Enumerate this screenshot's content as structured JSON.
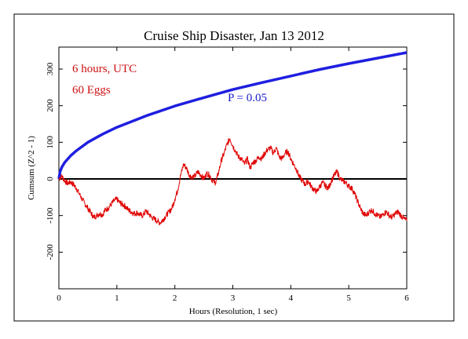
{
  "chart_data": {
    "type": "line",
    "title": "Cruise Ship Disaster, Jan 13 2012",
    "xlabel": "Hours (Resolution, 1 sec)",
    "ylabel": "Cumsum (Z^2 - 1)",
    "xlim": [
      0,
      6
    ],
    "ylim": [
      -300,
      360
    ],
    "x_ticks": [
      "0",
      "1",
      "2",
      "3",
      "4",
      "5",
      "6"
    ],
    "y_ticks": [
      "-200",
      "-100",
      "0",
      "100",
      "200",
      "300"
    ],
    "annotations": {
      "duration": "6 hours, UTC",
      "eggs": "60 Eggs",
      "p_label": "P = 0.05"
    },
    "colors": {
      "cumsum": "#e00000",
      "envelope": "#1f1fe0",
      "zero": "#000000",
      "annotation": "#cc1111",
      "p_label": "#1a1acc"
    },
    "series": [
      {
        "role": "envelope",
        "x": [
          0,
          0.02,
          0.05,
          0.1,
          0.2,
          0.3,
          0.5,
          0.75,
          1.0,
          1.5,
          2.0,
          2.5,
          3.0,
          3.5,
          4.0,
          4.5,
          5.0,
          5.5,
          6.0
        ],
        "values": [
          0,
          20,
          32,
          45,
          63,
          77,
          100,
          122,
          141,
          172,
          199,
          222,
          244,
          263,
          281,
          299,
          315,
          330,
          345
        ]
      },
      {
        "role": "cumsum",
        "x": [
          0,
          0.05,
          0.1,
          0.15,
          0.2,
          0.25,
          0.3,
          0.35,
          0.4,
          0.45,
          0.5,
          0.55,
          0.6,
          0.65,
          0.7,
          0.75,
          0.8,
          0.85,
          0.9,
          0.95,
          1.0,
          1.05,
          1.1,
          1.15,
          1.2,
          1.25,
          1.3,
          1.35,
          1.4,
          1.45,
          1.5,
          1.55,
          1.6,
          1.65,
          1.7,
          1.75,
          1.8,
          1.85,
          1.9,
          1.95,
          2.0,
          2.05,
          2.1,
          2.15,
          2.2,
          2.25,
          2.3,
          2.35,
          2.4,
          2.45,
          2.5,
          2.55,
          2.6,
          2.65,
          2.7,
          2.75,
          2.8,
          2.85,
          2.9,
          2.95,
          3.0,
          3.05,
          3.1,
          3.15,
          3.2,
          3.25,
          3.3,
          3.35,
          3.4,
          3.45,
          3.5,
          3.55,
          3.6,
          3.65,
          3.7,
          3.75,
          3.8,
          3.85,
          3.9,
          3.95,
          4.0,
          4.05,
          4.1,
          4.15,
          4.2,
          4.25,
          4.3,
          4.35,
          4.4,
          4.45,
          4.5,
          4.55,
          4.6,
          4.65,
          4.7,
          4.75,
          4.8,
          4.85,
          4.9,
          4.95,
          5.0,
          5.05,
          5.1,
          5.15,
          5.2,
          5.25,
          5.3,
          5.35,
          5.4,
          5.45,
          5.5,
          5.55,
          5.6,
          5.65,
          5.7,
          5.75,
          5.8,
          5.85,
          5.9,
          5.95,
          6.0
        ],
        "values": [
          0,
          8,
          -5,
          -12,
          -8,
          -15,
          -25,
          -40,
          -55,
          -68,
          -80,
          -92,
          -105,
          -100,
          -95,
          -98,
          -85,
          -80,
          -70,
          -60,
          -55,
          -65,
          -70,
          -75,
          -85,
          -90,
          -95,
          -92,
          -98,
          -100,
          -88,
          -95,
          -105,
          -110,
          -115,
          -120,
          -110,
          -100,
          -90,
          -80,
          -55,
          -30,
          10,
          40,
          30,
          10,
          5,
          8,
          20,
          10,
          0,
          15,
          10,
          -5,
          -10,
          15,
          50,
          70,
          95,
          110,
          90,
          75,
          60,
          55,
          40,
          55,
          30,
          45,
          50,
          60,
          55,
          70,
          80,
          85,
          70,
          85,
          60,
          55,
          70,
          75,
          55,
          40,
          25,
          5,
          -5,
          -15,
          -5,
          -20,
          -30,
          -35,
          -20,
          -10,
          -20,
          -25,
          -5,
          10,
          20,
          0,
          -5,
          -10,
          -20,
          -25,
          -40,
          -60,
          -80,
          -95,
          -100,
          -90,
          -85,
          -95,
          -100,
          -105,
          -95,
          -90,
          -100,
          -105,
          -95,
          -90,
          -100,
          -108,
          -115
        ]
      }
    ]
  }
}
